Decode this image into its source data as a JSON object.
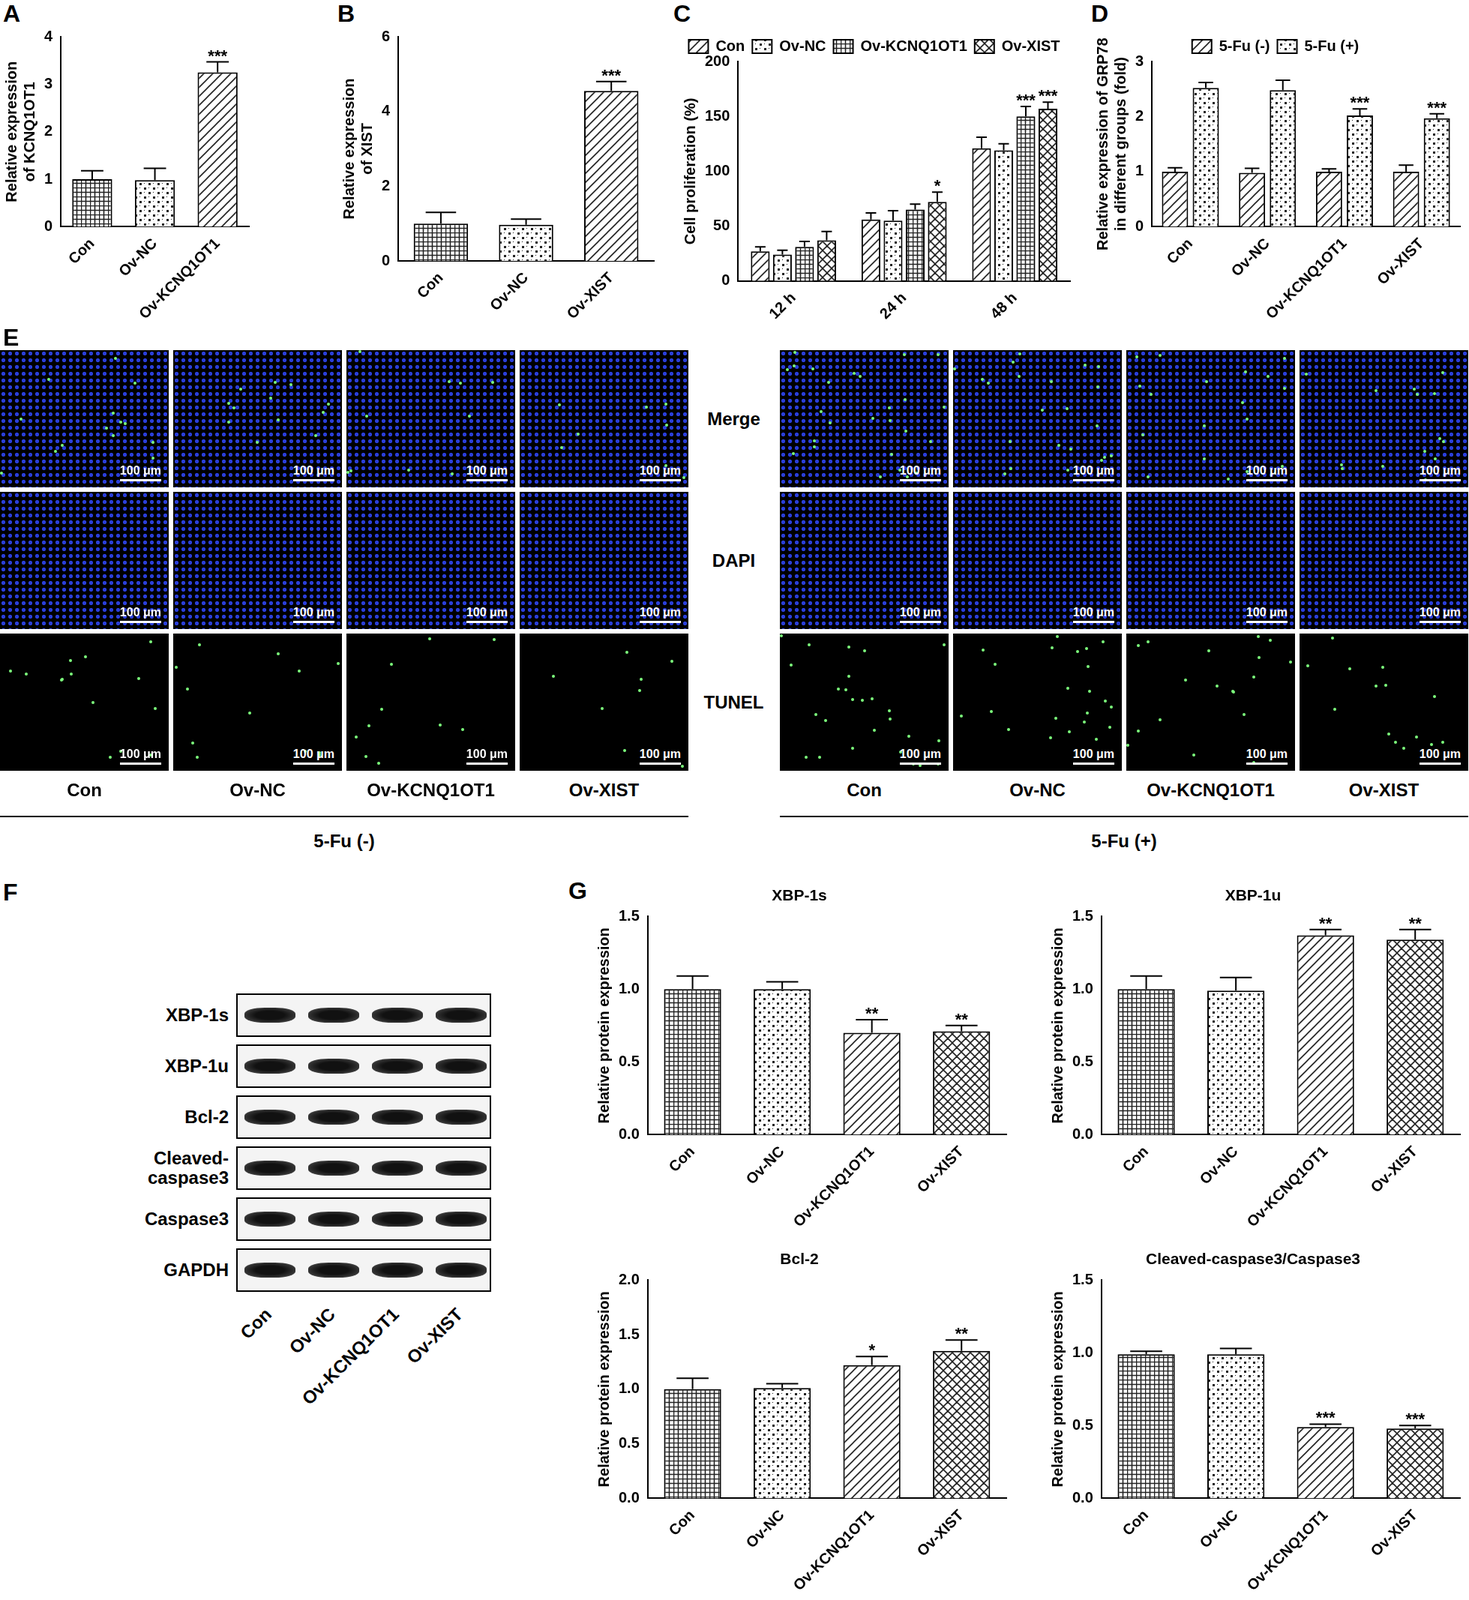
{
  "chart_data": [
    {
      "panel_label": "A",
      "type": "bar",
      "y_label": [
        "Relative expression",
        "of KCNQ1OT1"
      ],
      "categories": [
        "Con",
        "Ov-NC",
        "Ov-KCNQ1OT1"
      ],
      "values": [
        1.0,
        0.98,
        3.25
      ],
      "errors": [
        0.18,
        0.25,
        0.22
      ],
      "significance": [
        null,
        null,
        "***"
      ],
      "colors": [
        "#222222",
        "#222222",
        "#222222"
      ],
      "ylim": [
        0,
        4
      ],
      "yticks": [
        0,
        1,
        2,
        3,
        4
      ],
      "grid": false
    },
    {
      "panel_label": "B",
      "type": "bar",
      "y_label": [
        "Relative expression",
        "of XIST"
      ],
      "categories": [
        "Con",
        "Ov-NC",
        "Ov-XIST"
      ],
      "values": [
        1.0,
        0.97,
        4.55
      ],
      "errors": [
        0.3,
        0.15,
        0.25
      ],
      "significance": [
        null,
        null,
        "***"
      ],
      "colors": [
        "#222222",
        "#222222",
        "#222222"
      ],
      "ylim": [
        0,
        6
      ],
      "yticks": [
        0,
        2,
        4,
        6
      ],
      "grid": false
    },
    {
      "panel_label": "C",
      "type": "bar",
      "y_label": "Cell proliferation (%)",
      "categories": [
        "12 h",
        "24 h",
        "48 h"
      ],
      "series": [
        {
          "name": "Con",
          "color": "#222222",
          "values": [
            27,
            56,
            121
          ],
          "errors": [
            4,
            6,
            10
          ],
          "significance": [
            null,
            null,
            null
          ]
        },
        {
          "name": "Ov-NC",
          "color": "#222222",
          "values": [
            24,
            55,
            119
          ],
          "errors": [
            4,
            9,
            6
          ],
          "significance": [
            null,
            null,
            null
          ]
        },
        {
          "name": "Ov-KCNQ1OT1",
          "color": "#222222",
          "values": [
            31,
            65,
            150
          ],
          "errors": [
            5,
            5,
            9
          ],
          "significance": [
            null,
            null,
            "***"
          ]
        },
        {
          "name": "Ov-XIST",
          "color": "#222222",
          "values": [
            37,
            72,
            157
          ],
          "errors": [
            8,
            9,
            6
          ],
          "significance": [
            null,
            "*",
            "***"
          ]
        }
      ],
      "legend": "top",
      "ylim": [
        0,
        200
      ],
      "yticks": [
        0,
        50,
        100,
        150,
        200
      ],
      "grid": false
    },
    {
      "panel_label": "D",
      "type": "bar",
      "y_label": [
        "Relative expression of GRP78",
        "in different groups (fold)"
      ],
      "categories": [
        "Con",
        "Ov-NC",
        "Ov-KCNQ1OT1",
        "Ov-XIST"
      ],
      "series": [
        {
          "name": "5-Fu (-)",
          "color": "#222222",
          "values": [
            1.0,
            0.98,
            1.0,
            1.0
          ],
          "errors": [
            0.07,
            0.08,
            0.05,
            0.12
          ],
          "significance": [
            null,
            null,
            null,
            null
          ]
        },
        {
          "name": "5-Fu (+)",
          "color": "#222222",
          "values": [
            2.52,
            2.48,
            2.02,
            1.97
          ],
          "errors": [
            0.1,
            0.18,
            0.12,
            0.08
          ],
          "significance": [
            null,
            null,
            "***",
            "***"
          ]
        }
      ],
      "legend": "top",
      "ylim": [
        0,
        3
      ],
      "yticks": [
        0,
        1,
        2,
        3
      ],
      "grid": false
    },
    {
      "panel_label": "G",
      "type": "bar",
      "title": "XBP-1s",
      "y_label": "Relative protein expression",
      "categories": [
        "Con",
        "Ov-NC",
        "Ov-KCNQ1OT1",
        "Ov-XIST"
      ],
      "values": [
        1.0,
        1.0,
        0.7,
        0.71
      ],
      "errors": [
        0.09,
        0.05,
        0.09,
        0.04
      ],
      "significance": [
        null,
        null,
        "**",
        "**"
      ],
      "colors": [
        "#222222",
        "#222222",
        "#222222",
        "#222222"
      ],
      "ylim": [
        0,
        1.5
      ],
      "yticks": [
        {
          "value": 0,
          "label": "0.0"
        },
        {
          "value": 0.5,
          "label": "0.5"
        },
        {
          "value": 1,
          "label": "1.0"
        },
        {
          "value": 1.5,
          "label": "1.5"
        }
      ],
      "grid": false
    },
    {
      "type": "bar",
      "title": "XBP-1u",
      "y_label": "Relative protein expression",
      "categories": [
        "Con",
        "Ov-NC",
        "Ov-KCNQ1OT1",
        "Ov-XIST"
      ],
      "values": [
        1.0,
        0.99,
        1.37,
        1.34
      ],
      "errors": [
        0.09,
        0.09,
        0.04,
        0.07
      ],
      "significance": [
        null,
        null,
        "**",
        "**"
      ],
      "colors": [
        "#222222",
        "#222222",
        "#222222",
        "#222222"
      ],
      "ylim": [
        0,
        1.5
      ],
      "yticks": [
        {
          "value": 0,
          "label": "0.0"
        },
        {
          "value": 0.5,
          "label": "0.5"
        },
        {
          "value": 1,
          "label": "1.0"
        },
        {
          "value": 1.5,
          "label": "1.5"
        }
      ],
      "grid": false
    },
    {
      "type": "bar",
      "title": "Bcl-2",
      "y_label": "Relative protein expression",
      "categories": [
        "Con",
        "Ov-NC",
        "Ov-KCNQ1OT1",
        "Ov-XIST"
      ],
      "values": [
        1.0,
        1.01,
        1.22,
        1.35
      ],
      "errors": [
        0.1,
        0.04,
        0.08,
        0.1
      ],
      "significance": [
        null,
        null,
        "*",
        "**"
      ],
      "colors": [
        "#222222",
        "#222222",
        "#222222",
        "#222222"
      ],
      "ylim": [
        0,
        2
      ],
      "yticks": [
        {
          "value": 0,
          "label": "0.0"
        },
        {
          "value": 0.5,
          "label": "0.5"
        },
        {
          "value": 1,
          "label": "1.0"
        },
        {
          "value": 1.5,
          "label": "1.5"
        },
        {
          "value": 2,
          "label": "2.0"
        }
      ],
      "grid": false
    },
    {
      "type": "bar",
      "title": "Cleaved-caspase3/Caspase3",
      "y_label": "Relative protein expression",
      "categories": [
        "Con",
        "Ov-NC",
        "Ov-KCNQ1OT1",
        "Ov-XIST"
      ],
      "values": [
        0.99,
        0.99,
        0.49,
        0.48
      ],
      "errors": [
        0.02,
        0.04,
        0.02,
        0.02
      ],
      "significance": [
        null,
        null,
        "***",
        "***"
      ],
      "colors": [
        "#222222",
        "#222222",
        "#222222",
        "#222222"
      ],
      "ylim": [
        0,
        1.5
      ],
      "yticks": [
        {
          "value": 0,
          "label": "0.0"
        },
        {
          "value": 0.5,
          "label": "0.5"
        },
        {
          "value": 1,
          "label": "1.0"
        },
        {
          "value": 1.5,
          "label": "1.5"
        }
      ],
      "grid": false
    }
  ],
  "panel_e": {
    "panel_label": "E",
    "row_labels": [
      "Merge",
      "DAPI",
      "TUNEL"
    ],
    "scale_bar": "100 μm",
    "groups": [
      {
        "name": "5-Fu (-)",
        "columns": [
          "Con",
          "Ov-NC",
          "Ov-KCNQ1OT1",
          "Ov-XIST"
        ]
      },
      {
        "name": "5-Fu (+)",
        "columns": [
          "Con",
          "Ov-NC",
          "Ov-KCNQ1OT1",
          "Ov-XIST"
        ]
      }
    ]
  },
  "panel_f": {
    "panel_label": "F",
    "rows": [
      [
        "XBP-1s"
      ],
      [
        "XBP-1u"
      ],
      [
        "Bcl-2"
      ],
      [
        "Cleaved-",
        "caspase3"
      ],
      [
        "Caspase3"
      ],
      [
        "GAPDH"
      ]
    ],
    "lanes": [
      "Con",
      "Ov-NC",
      "Ov-KCNQ1OT1",
      "Ov-XIST"
    ]
  }
}
